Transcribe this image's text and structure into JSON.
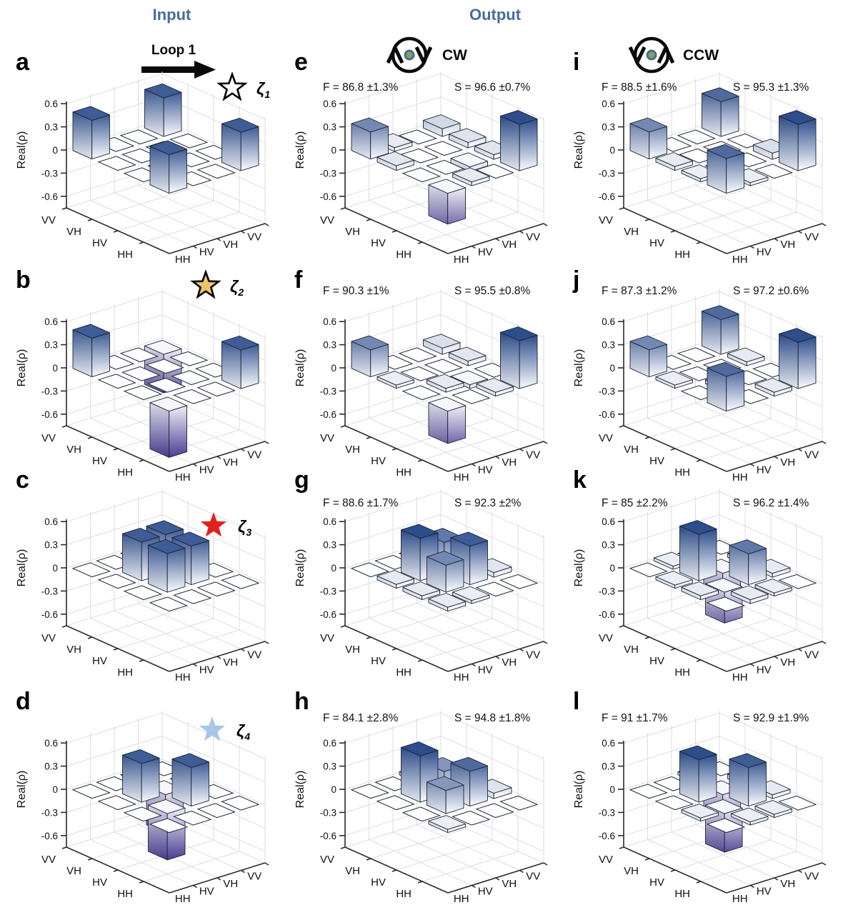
{
  "header": {
    "input_label": "Input",
    "output_label": "Output",
    "loop_label": "Loop 1",
    "cw_label": "CW",
    "ccw_label": "CCW",
    "accent_color": "#4a6b9d",
    "icon_dot_fill": "#7fa654",
    "icon_dot_ring": "#4a6a9e"
  },
  "axis": {
    "z_label": "Real(ρ)",
    "z_tick_labels": [
      "0.6",
      "0.3",
      "0",
      "-0.3",
      "-0.6"
    ],
    "z_tick_values": [
      0.6,
      0.3,
      0,
      -0.3,
      -0.6
    ],
    "left_axis_labels": [
      "HH",
      "HV",
      "VH",
      "VV"
    ],
    "right_axis_labels": [
      "HH",
      "HV",
      "VH",
      "VV"
    ]
  },
  "stars": {
    "zeta1": {
      "symbol": "ζ",
      "sub": "1",
      "fill": "#ffffff",
      "stroke": "#000000"
    },
    "zeta2": {
      "symbol": "ζ",
      "sub": "2",
      "fill": "#ecc467",
      "stroke": "#000000"
    },
    "zeta3": {
      "symbol": "ζ",
      "sub": "3",
      "fill": "#e3201b",
      "stroke": "none"
    },
    "zeta4": {
      "symbol": "ζ",
      "sub": "4",
      "fill": "#a9c5e8",
      "stroke": "none"
    }
  },
  "colors": {
    "bar_positive": "#2d4d8b",
    "bar_negative": "#4a3c92",
    "grid": "#d9dde3",
    "axis_line": "#2b2b2b"
  },
  "panels": [
    {
      "id": "a",
      "letter": "a",
      "col": 0,
      "row": 0,
      "star": "zeta1"
    },
    {
      "id": "b",
      "letter": "b",
      "col": 0,
      "row": 1,
      "star": "zeta2"
    },
    {
      "id": "c",
      "letter": "c",
      "col": 0,
      "row": 2,
      "star": "zeta3"
    },
    {
      "id": "d",
      "letter": "d",
      "col": 0,
      "row": 3,
      "star": "zeta4"
    },
    {
      "id": "e",
      "letter": "e",
      "col": 1,
      "row": 0,
      "fidelity": "F = 86.8 ±1.3%",
      "s_value": "S = 96.6 ±0.7%"
    },
    {
      "id": "f",
      "letter": "f",
      "col": 1,
      "row": 1,
      "fidelity": "F = 90.3 ±1%",
      "s_value": "S = 95.5 ±0.8%"
    },
    {
      "id": "g",
      "letter": "g",
      "col": 1,
      "row": 2,
      "fidelity": "F = 88.6 ±1.7%",
      "s_value": "S = 92.3 ±2%"
    },
    {
      "id": "h",
      "letter": "h",
      "col": 1,
      "row": 3,
      "fidelity": "F = 84.1 ±2.8%",
      "s_value": "S = 94.8 ±1.8%"
    },
    {
      "id": "i",
      "letter": "i",
      "col": 2,
      "row": 0,
      "fidelity": "F = 88.5 ±1.6%",
      "s_value": "S = 95.3 ±1.3%"
    },
    {
      "id": "j",
      "letter": "j",
      "col": 2,
      "row": 1,
      "fidelity": "F = 87.3 ±1.2%",
      "s_value": "S = 97.2 ±0.6%"
    },
    {
      "id": "k",
      "letter": "k",
      "col": 2,
      "row": 2,
      "fidelity": "F = 85 ±2.2%",
      "s_value": "S = 96.2 ±1.4%"
    },
    {
      "id": "l",
      "letter": "l",
      "col": 2,
      "row": 3,
      "fidelity": "F = 91 ±1.7%",
      "s_value": "S = 92.9 ±1.9%"
    }
  ],
  "chart_data": [
    {
      "panel": "a",
      "type": "bar",
      "zlabel": "Real(ρ)",
      "zlim": [
        -0.6,
        0.6
      ],
      "zticks": [
        0.6,
        0.3,
        0,
        -0.3,
        -0.6
      ],
      "row_basis": [
        "HH",
        "HV",
        "VH",
        "VV"
      ],
      "col_basis": [
        "HH",
        "HV",
        "VH",
        "VV"
      ],
      "matrix": [
        [
          0.5,
          0,
          0,
          0.5
        ],
        [
          0,
          0,
          0,
          0
        ],
        [
          0,
          0,
          0,
          0
        ],
        [
          0.5,
          0,
          0,
          0.5
        ]
      ]
    },
    {
      "panel": "b",
      "type": "bar",
      "zlabel": "Real(ρ)",
      "zlim": [
        -0.6,
        0.6
      ],
      "zticks": [
        0.6,
        0.3,
        0,
        -0.3,
        -0.6
      ],
      "row_basis": [
        "HH",
        "HV",
        "VH",
        "VV"
      ],
      "col_basis": [
        "HH",
        "HV",
        "VH",
        "VV"
      ],
      "matrix": [
        [
          -0.6,
          0,
          0,
          0.5
        ],
        [
          0,
          0,
          0,
          0
        ],
        [
          0,
          0,
          0,
          0
        ],
        [
          0.5,
          0,
          0,
          -0.5
        ]
      ]
    },
    {
      "panel": "c",
      "type": "bar",
      "zlabel": "Real(ρ)",
      "zlim": [
        -0.6,
        0.6
      ],
      "zticks": [
        0.6,
        0.3,
        0,
        -0.3,
        -0.6
      ],
      "row_basis": [
        "HH",
        "HV",
        "VH",
        "VV"
      ],
      "col_basis": [
        "HH",
        "HV",
        "VH",
        "VV"
      ],
      "matrix": [
        [
          0,
          0,
          0,
          0
        ],
        [
          0,
          0.5,
          0.5,
          0
        ],
        [
          0,
          0.5,
          0.5,
          0
        ],
        [
          0,
          0,
          0,
          0
        ]
      ]
    },
    {
      "panel": "d",
      "type": "bar",
      "zlabel": "Real(ρ)",
      "zlim": [
        -0.6,
        0.6
      ],
      "zticks": [
        0.6,
        0.3,
        0,
        -0.3,
        -0.6
      ],
      "row_basis": [
        "HH",
        "HV",
        "VH",
        "VV"
      ],
      "col_basis": [
        "HH",
        "HV",
        "VH",
        "VV"
      ],
      "matrix": [
        [
          0,
          0,
          0,
          0
        ],
        [
          0,
          -0.6,
          0.5,
          0
        ],
        [
          0,
          0.5,
          -0.5,
          0
        ],
        [
          0,
          0,
          0,
          0
        ]
      ]
    },
    {
      "panel": "e",
      "type": "bar",
      "zlabel": "Real(ρ)",
      "zlim": [
        -0.6,
        0.6
      ],
      "zticks": [
        0.6,
        0.3,
        0,
        -0.3,
        -0.6
      ],
      "row_basis": [
        "HH",
        "HV",
        "VH",
        "VV"
      ],
      "col_basis": [
        "HH",
        "HV",
        "VH",
        "VV"
      ],
      "matrix": [
        [
          -0.4,
          0.05,
          0,
          0.6
        ],
        [
          0,
          0,
          -0.06,
          0.06
        ],
        [
          0.06,
          0,
          0,
          0.07
        ],
        [
          0.35,
          0.05,
          0,
          0.1
        ]
      ]
    },
    {
      "panel": "f",
      "type": "bar",
      "zlabel": "Real(ρ)",
      "zlim": [
        -0.6,
        0.6
      ],
      "zticks": [
        0.6,
        0.3,
        0,
        -0.3,
        -0.6
      ],
      "row_basis": [
        "HH",
        "HV",
        "VH",
        "VV"
      ],
      "col_basis": [
        "HH",
        "HV",
        "VH",
        "VV"
      ],
      "matrix": [
        [
          -0.42,
          0,
          0.05,
          0.62
        ],
        [
          0,
          0.05,
          -0.05,
          0
        ],
        [
          0.04,
          0,
          0,
          0.06
        ],
        [
          0.35,
          0,
          0,
          0.08
        ]
      ]
    },
    {
      "panel": "g",
      "type": "bar",
      "zlabel": "Real(ρ)",
      "zlim": [
        -0.6,
        0.6
      ],
      "zticks": [
        0.6,
        0.3,
        0,
        -0.3,
        -0.6
      ],
      "row_basis": [
        "HH",
        "HV",
        "VH",
        "VV"
      ],
      "col_basis": [
        "HH",
        "HV",
        "VH",
        "VV"
      ],
      "matrix": [
        [
          0.05,
          0.04,
          0,
          0
        ],
        [
          0.05,
          0.35,
          0.5,
          0.06
        ],
        [
          0.05,
          0.55,
          0.4,
          0.05
        ],
        [
          0,
          0,
          0,
          0
        ]
      ]
    },
    {
      "panel": "h",
      "type": "bar",
      "zlabel": "Real(ρ)",
      "zlim": [
        -0.6,
        0.6
      ],
      "zticks": [
        0.6,
        0.3,
        0,
        -0.3,
        -0.6
      ],
      "row_basis": [
        "HH",
        "HV",
        "VH",
        "VV"
      ],
      "col_basis": [
        "HH",
        "HV",
        "VH",
        "VV"
      ],
      "matrix": [
        [
          0.04,
          0,
          0,
          0
        ],
        [
          0,
          0.3,
          0.45,
          0.07
        ],
        [
          0,
          0.6,
          0.3,
          0.05
        ],
        [
          0,
          0,
          0.04,
          0
        ]
      ]
    },
    {
      "panel": "i",
      "type": "bar",
      "zlabel": "Real(ρ)",
      "zlim": [
        -0.6,
        0.6
      ],
      "zticks": [
        0.6,
        0.3,
        0,
        -0.3,
        -0.6
      ],
      "row_basis": [
        "HH",
        "HV",
        "VH",
        "VV"
      ],
      "col_basis": [
        "HH",
        "HV",
        "VH",
        "VV"
      ],
      "matrix": [
        [
          0.45,
          0.04,
          0,
          0.6
        ],
        [
          0.04,
          0,
          0,
          0.08
        ],
        [
          0.05,
          0,
          0,
          0
        ],
        [
          0.35,
          0,
          0,
          0.45
        ]
      ]
    },
    {
      "panel": "j",
      "type": "bar",
      "zlabel": "Real(ρ)",
      "zlim": [
        -0.6,
        0.6
      ],
      "zticks": [
        0.6,
        0.3,
        0,
        -0.3,
        -0.6
      ],
      "row_basis": [
        "HH",
        "HV",
        "VH",
        "VV"
      ],
      "col_basis": [
        "HH",
        "HV",
        "VH",
        "VV"
      ],
      "matrix": [
        [
          0.45,
          0,
          0.05,
          0.6
        ],
        [
          0,
          0.05,
          0,
          0
        ],
        [
          0.04,
          0,
          0,
          0.05
        ],
        [
          0.35,
          0,
          0,
          0.45
        ]
      ]
    },
    {
      "panel": "k",
      "type": "bar",
      "zlabel": "Real(ρ)",
      "zlim": [
        -0.6,
        0.6
      ],
      "zticks": [
        0.6,
        0.3,
        0,
        -0.3,
        -0.6
      ],
      "row_basis": [
        "HH",
        "HV",
        "VH",
        "VV"
      ],
      "col_basis": [
        "HH",
        "HV",
        "VH",
        "VV"
      ],
      "matrix": [
        [
          0,
          0.05,
          0.04,
          0
        ],
        [
          0.05,
          -0.4,
          0.4,
          0.05
        ],
        [
          0.04,
          0.6,
          -0.3,
          0.05
        ],
        [
          0,
          0.04,
          0,
          0
        ]
      ]
    },
    {
      "panel": "l",
      "type": "bar",
      "zlabel": "Real(ρ)",
      "zlim": [
        -0.6,
        0.6
      ],
      "zticks": [
        0.6,
        0.3,
        0,
        -0.3,
        -0.6
      ],
      "row_basis": [
        "HH",
        "HV",
        "VH",
        "VV"
      ],
      "col_basis": [
        "HH",
        "HV",
        "VH",
        "VV"
      ],
      "matrix": [
        [
          0,
          0.04,
          0.04,
          0
        ],
        [
          0.04,
          -0.5,
          0.5,
          0.05
        ],
        [
          0,
          0.55,
          -0.4,
          0.06
        ],
        [
          0,
          0,
          0.04,
          0
        ]
      ]
    }
  ]
}
